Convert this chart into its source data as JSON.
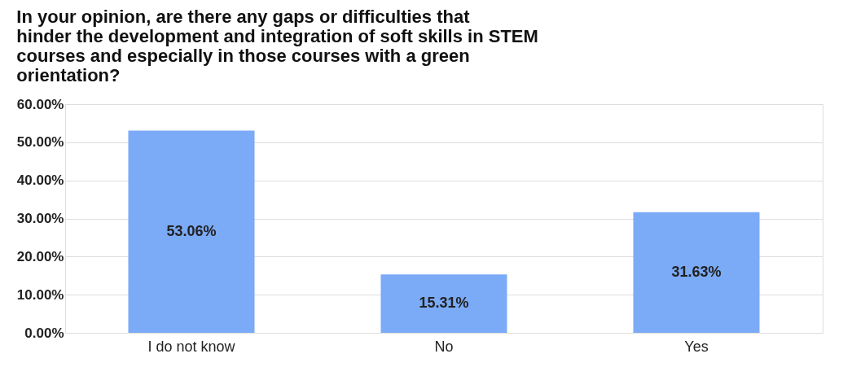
{
  "chart_data": {
    "type": "bar",
    "title": "In your opinion, are there any gaps or difficulties that hinder the development and integration of soft skills in STEM courses and especially in those courses with a green orientation?",
    "categories": [
      "I do not know",
      "No",
      "Yes"
    ],
    "values": [
      53.06,
      15.31,
      31.63
    ],
    "value_labels": [
      "53.06%",
      "15.31%",
      "31.63%"
    ],
    "color": "#7baaf7",
    "ylim": [
      0,
      60
    ],
    "yticks": [
      {
        "value": 0,
        "label": "0.00%"
      },
      {
        "value": 10,
        "label": "10.00%"
      },
      {
        "value": 20,
        "label": "20.00%"
      },
      {
        "value": 30,
        "label": "30.00%"
      },
      {
        "value": 40,
        "label": "40.00%"
      },
      {
        "value": 50,
        "label": "50.00%"
      },
      {
        "value": 60,
        "label": "60.00%"
      }
    ],
    "grid": "y"
  }
}
